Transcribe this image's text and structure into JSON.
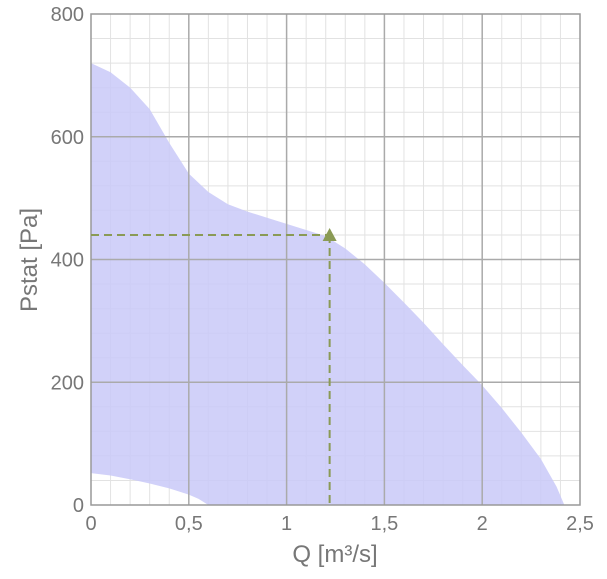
{
  "chart_data": {
    "type": "area",
    "xlabel": "Q [m³/s]",
    "ylabel": "Pstat [Pa]",
    "xlim": [
      0,
      2.5
    ],
    "ylim": [
      0,
      800
    ],
    "x_ticks": [
      "0",
      "0,5",
      "1",
      "1,5",
      "2",
      "2,5"
    ],
    "y_ticks": [
      "0",
      "200",
      "400",
      "600",
      "800"
    ],
    "grid": true,
    "colors": {
      "area_fill": "#c9c9f8",
      "operating_point": "#8a9a55",
      "grid_major": "#aaaaaa",
      "grid_minor": "#e2e2e2",
      "text": "#777777"
    },
    "series": [
      {
        "upper_boundary": [
          [
            0,
            720
          ],
          [
            0.1,
            705
          ],
          [
            0.2,
            680
          ],
          [
            0.3,
            645
          ],
          [
            0.4,
            590
          ],
          [
            0.5,
            540
          ],
          [
            0.6,
            510
          ],
          [
            0.7,
            490
          ],
          [
            0.8,
            478
          ],
          [
            0.9,
            468
          ],
          [
            1.0,
            458
          ],
          [
            1.1,
            448
          ],
          [
            1.2,
            438
          ],
          [
            1.3,
            418
          ],
          [
            1.4,
            392
          ],
          [
            1.5,
            362
          ],
          [
            1.6,
            330
          ],
          [
            1.7,
            297
          ],
          [
            1.8,
            262
          ],
          [
            1.9,
            228
          ],
          [
            2.0,
            195
          ],
          [
            2.1,
            158
          ],
          [
            2.2,
            118
          ],
          [
            2.3,
            75
          ],
          [
            2.38,
            30
          ],
          [
            2.42,
            0
          ]
        ],
        "lower_boundary": [
          [
            0,
            52
          ],
          [
            0.1,
            48
          ],
          [
            0.2,
            42
          ],
          [
            0.3,
            35
          ],
          [
            0.4,
            27
          ],
          [
            0.5,
            17
          ],
          [
            0.55,
            10
          ],
          [
            0.6,
            0
          ]
        ]
      }
    ],
    "operating_point": {
      "x": 1.22,
      "y": 440
    }
  }
}
